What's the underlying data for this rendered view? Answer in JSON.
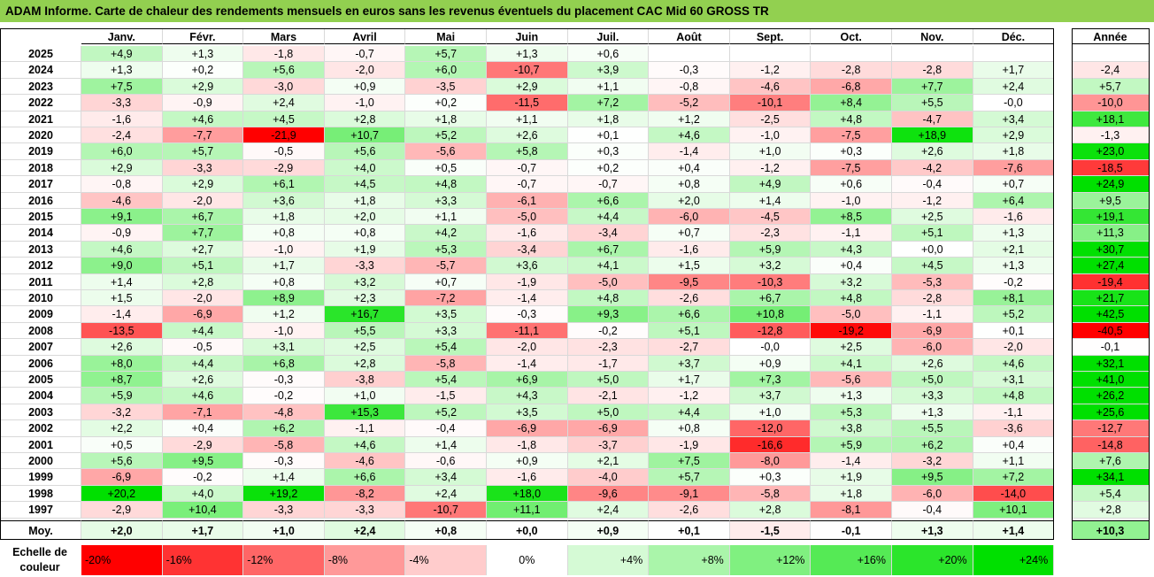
{
  "title": "ADAM Informe. Carte de chaleur des rendements mensuels en euros sans les revenus éventuels du placement CAC Mid 60 GROSS TR",
  "months": [
    "Janv.",
    "Févr.",
    "Mars",
    "Avril",
    "Mai",
    "Juin",
    "Juil.",
    "Août",
    "Sept.",
    "Oct.",
    "Nov.",
    "Déc."
  ],
  "year_header": "Année",
  "avg_label": "Moy.",
  "scale_label": "Echelle de couleur",
  "colors": {
    "title_bg": "#92d050",
    "neg_max": "#ff0000",
    "pos_max": "#00e000",
    "zero": "#ffffff"
  },
  "chart_data": {
    "type": "heatmap",
    "title": "ADAM Informe. Carte de chaleur des rendements mensuels en euros sans les revenus éventuels du placement CAC Mid 60 GROSS TR",
    "columns": [
      "Janv.",
      "Févr.",
      "Mars",
      "Avril",
      "Mai",
      "Juin",
      "Juil.",
      "Août",
      "Sept.",
      "Oct.",
      "Nov.",
      "Déc.",
      "Année"
    ],
    "rows": [
      {
        "year": "2025",
        "values": [
          "+4,9",
          "+1,3",
          "-1,8",
          "-0,7",
          "+5,7",
          "+1,3",
          "+0,6",
          "",
          "",
          "",
          "",
          "",
          ""
        ]
      },
      {
        "year": "2024",
        "values": [
          "+1,3",
          "+0,2",
          "+5,6",
          "-2,0",
          "+6,0",
          "-10,7",
          "+3,9",
          "-0,3",
          "-1,2",
          "-2,8",
          "-2,8",
          "+1,7",
          "-2,4"
        ]
      },
      {
        "year": "2023",
        "values": [
          "+7,5",
          "+2,9",
          "-3,0",
          "+0,9",
          "-3,5",
          "+2,9",
          "+1,1",
          "-0,8",
          "-4,6",
          "-6,8",
          "+7,7",
          "+2,4",
          "+5,7"
        ]
      },
      {
        "year": "2022",
        "values": [
          "-3,3",
          "-0,9",
          "+2,4",
          "-1,0",
          "+0,2",
          "-11,5",
          "+7,2",
          "-5,2",
          "-10,1",
          "+8,4",
          "+5,5",
          "-0,0",
          "-10,0"
        ]
      },
      {
        "year": "2021",
        "values": [
          "-1,6",
          "+4,6",
          "+4,5",
          "+2,8",
          "+1,8",
          "+1,1",
          "+1,8",
          "+1,2",
          "-2,5",
          "+4,8",
          "-4,7",
          "+3,4",
          "+18,1"
        ]
      },
      {
        "year": "2020",
        "values": [
          "-2,4",
          "-7,7",
          "-21,9",
          "+10,7",
          "+5,2",
          "+2,6",
          "+0,1",
          "+4,6",
          "-1,0",
          "-7,5",
          "+18,9",
          "+2,9",
          "-1,3"
        ]
      },
      {
        "year": "2019",
        "values": [
          "+6,0",
          "+5,7",
          "-0,5",
          "+5,6",
          "-5,6",
          "+5,8",
          "+0,3",
          "-1,4",
          "+1,0",
          "+0,3",
          "+2,6",
          "+1,8",
          "+23,0"
        ]
      },
      {
        "year": "2018",
        "values": [
          "+2,9",
          "-3,3",
          "-2,9",
          "+4,0",
          "+0,5",
          "-0,7",
          "+0,2",
          "+0,4",
          "-1,2",
          "-7,5",
          "-4,2",
          "-7,6",
          "-18,5"
        ]
      },
      {
        "year": "2017",
        "values": [
          "-0,8",
          "+2,9",
          "+6,1",
          "+4,5",
          "+4,8",
          "-0,7",
          "-0,7",
          "+0,8",
          "+4,9",
          "+0,6",
          "-0,4",
          "+0,7",
          "+24,9"
        ]
      },
      {
        "year": "2016",
        "values": [
          "-4,6",
          "-2,0",
          "+3,6",
          "+1,8",
          "+3,3",
          "-6,1",
          "+6,6",
          "+2,0",
          "+1,4",
          "-1,0",
          "-1,2",
          "+6,4",
          "+9,5"
        ]
      },
      {
        "year": "2015",
        "values": [
          "+9,1",
          "+6,7",
          "+1,8",
          "+2,0",
          "+1,1",
          "-5,0",
          "+4,4",
          "-6,0",
          "-4,5",
          "+8,5",
          "+2,5",
          "-1,6",
          "+19,1"
        ]
      },
      {
        "year": "2014",
        "values": [
          "-0,9",
          "+7,7",
          "+0,8",
          "+0,8",
          "+4,2",
          "-1,6",
          "-3,4",
          "+0,7",
          "-2,3",
          "-1,1",
          "+5,1",
          "+1,3",
          "+11,3"
        ]
      },
      {
        "year": "2013",
        "values": [
          "+4,6",
          "+2,7",
          "-1,0",
          "+1,9",
          "+5,3",
          "-3,4",
          "+6,7",
          "-1,6",
          "+5,9",
          "+4,3",
          "+0,0",
          "+2,1",
          "+30,7"
        ]
      },
      {
        "year": "2012",
        "values": [
          "+9,0",
          "+5,1",
          "+1,7",
          "-3,3",
          "-5,7",
          "+3,6",
          "+4,1",
          "+1,5",
          "+3,2",
          "+0,4",
          "+4,5",
          "+1,3",
          "+27,4"
        ]
      },
      {
        "year": "2011",
        "values": [
          "+1,4",
          "+2,8",
          "+0,8",
          "+3,2",
          "+0,7",
          "-1,9",
          "-5,0",
          "-9,5",
          "-10,3",
          "+3,2",
          "-5,3",
          "-0,2",
          "-19,4"
        ]
      },
      {
        "year": "2010",
        "values": [
          "+1,5",
          "-2,0",
          "+8,9",
          "+2,3",
          "-7,2",
          "-1,4",
          "+4,8",
          "-2,6",
          "+6,7",
          "+4,8",
          "-2,8",
          "+8,1",
          "+21,7"
        ]
      },
      {
        "year": "2009",
        "values": [
          "-1,4",
          "-6,9",
          "+1,2",
          "+16,7",
          "+3,5",
          "-0,3",
          "+9,3",
          "+6,6",
          "+10,8",
          "-5,0",
          "-1,1",
          "+5,2",
          "+42,5"
        ]
      },
      {
        "year": "2008",
        "values": [
          "-13,5",
          "+4,4",
          "-1,0",
          "+5,5",
          "+3,3",
          "-11,1",
          "-0,2",
          "+5,1",
          "-12,8",
          "-19,2",
          "-6,9",
          "+0,1",
          "-40,5"
        ]
      },
      {
        "year": "2007",
        "values": [
          "+2,6",
          "-0,5",
          "+3,1",
          "+2,5",
          "+5,4",
          "-2,0",
          "-2,3",
          "-2,7",
          "-0,0",
          "+2,5",
          "-6,0",
          "-2,0",
          "-0,1"
        ]
      },
      {
        "year": "2006",
        "values": [
          "+8,0",
          "+4,4",
          "+6,8",
          "+2,8",
          "-5,8",
          "-1,4",
          "-1,7",
          "+3,7",
          "+0,9",
          "+4,1",
          "+2,6",
          "+4,6",
          "+32,1"
        ]
      },
      {
        "year": "2005",
        "values": [
          "+8,7",
          "+2,6",
          "-0,3",
          "-3,8",
          "+5,4",
          "+6,9",
          "+5,0",
          "+1,7",
          "+7,3",
          "-5,6",
          "+5,0",
          "+3,1",
          "+41,0"
        ]
      },
      {
        "year": "2004",
        "values": [
          "+5,9",
          "+4,6",
          "-0,2",
          "+1,0",
          "-1,5",
          "+4,3",
          "-2,1",
          "-1,2",
          "+3,7",
          "+1,3",
          "+3,3",
          "+4,8",
          "+26,2"
        ]
      },
      {
        "year": "2003",
        "values": [
          "-3,2",
          "-7,1",
          "-4,8",
          "+15,3",
          "+5,2",
          "+3,5",
          "+5,0",
          "+4,4",
          "+1,0",
          "+5,3",
          "+1,3",
          "-1,1",
          "+25,6"
        ]
      },
      {
        "year": "2002",
        "values": [
          "+2,2",
          "+0,4",
          "+6,2",
          "-1,1",
          "-0,4",
          "-6,9",
          "-6,9",
          "+0,8",
          "-12,0",
          "+3,8",
          "+5,5",
          "-3,6",
          "-12,7"
        ]
      },
      {
        "year": "2001",
        "values": [
          "+0,5",
          "-2,9",
          "-5,8",
          "+4,6",
          "+1,4",
          "-1,8",
          "-3,7",
          "-1,9",
          "-16,6",
          "+5,9",
          "+6,2",
          "+0,4",
          "-14,8"
        ]
      },
      {
        "year": "2000",
        "values": [
          "+5,6",
          "+9,5",
          "-0,3",
          "-4,6",
          "-0,6",
          "+0,9",
          "+2,1",
          "+7,5",
          "-8,0",
          "-1,4",
          "-3,2",
          "+1,1",
          "+7,6"
        ]
      },
      {
        "year": "1999",
        "values": [
          "-6,9",
          "-0,2",
          "+1,4",
          "+6,6",
          "+3,4",
          "-1,6",
          "-4,0",
          "+5,7",
          "+0,3",
          "+1,9",
          "+9,5",
          "+7,2",
          "+34,1"
        ]
      },
      {
        "year": "1998",
        "values": [
          "+20,2",
          "+4,0",
          "+19,2",
          "-8,2",
          "+2,4",
          "+18,0",
          "-9,6",
          "-9,1",
          "-5,8",
          "+1,8",
          "-6,0",
          "-14,0",
          "+5,4"
        ]
      },
      {
        "year": "1997",
        "values": [
          "-2,9",
          "+10,4",
          "-3,3",
          "-3,3",
          "-10,7",
          "+11,1",
          "+2,4",
          "-2,6",
          "+2,8",
          "-8,1",
          "-0,4",
          "+10,1",
          "+2,8"
        ]
      }
    ],
    "averages": [
      "+2,0",
      "+1,7",
      "+1,0",
      "+2,4",
      "+0,8",
      "+0,0",
      "+0,9",
      "+0,1",
      "-1,5",
      "-0,1",
      "+1,3",
      "+1,4",
      "+10,3"
    ],
    "scale": [
      "-20%",
      "-16%",
      "-12%",
      "-8%",
      "-4%",
      "0%",
      "+4%",
      "+8%",
      "+12%",
      "+16%",
      "+20%",
      "+24%"
    ]
  }
}
